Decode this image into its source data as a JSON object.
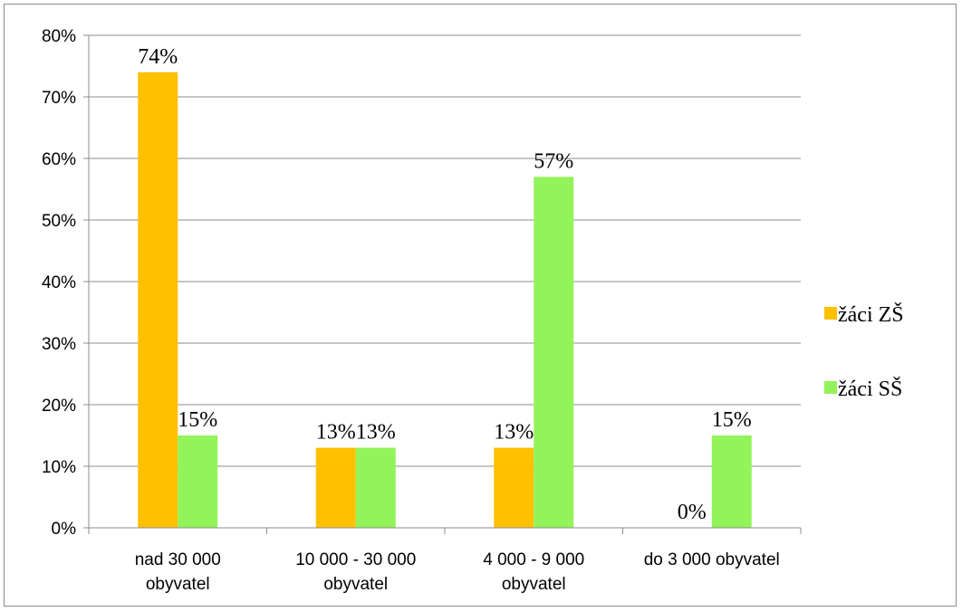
{
  "chart_data": {
    "type": "bar",
    "categories": [
      [
        "nad 30 000",
        "obyvatel"
      ],
      [
        "10 000 - 30 000",
        "obyvatel"
      ],
      [
        "4 000 - 9 000",
        "obyvatel"
      ],
      [
        "do 3 000 obyvatel"
      ]
    ],
    "series": [
      {
        "name": "žáci ZŠ",
        "color": "#FFC000",
        "values": [
          74,
          13,
          13,
          0
        ],
        "labels": [
          "74%",
          "13%",
          "13%",
          "0%"
        ]
      },
      {
        "name": "žáci SŠ",
        "color": "#92F35A",
        "values": [
          15,
          13,
          57,
          15
        ],
        "labels": [
          "15%",
          "13%",
          "57%",
          "15%"
        ]
      }
    ],
    "ylim": [
      0,
      80
    ],
    "yticks": [
      0,
      10,
      20,
      30,
      40,
      50,
      60,
      70,
      80
    ],
    "ytick_labels": [
      "0%",
      "10%",
      "20%",
      "30%",
      "40%",
      "50%",
      "60%",
      "70%",
      "80%"
    ],
    "grid": true,
    "legend_position": "right",
    "title": "",
    "xlabel": "",
    "ylabel": ""
  }
}
